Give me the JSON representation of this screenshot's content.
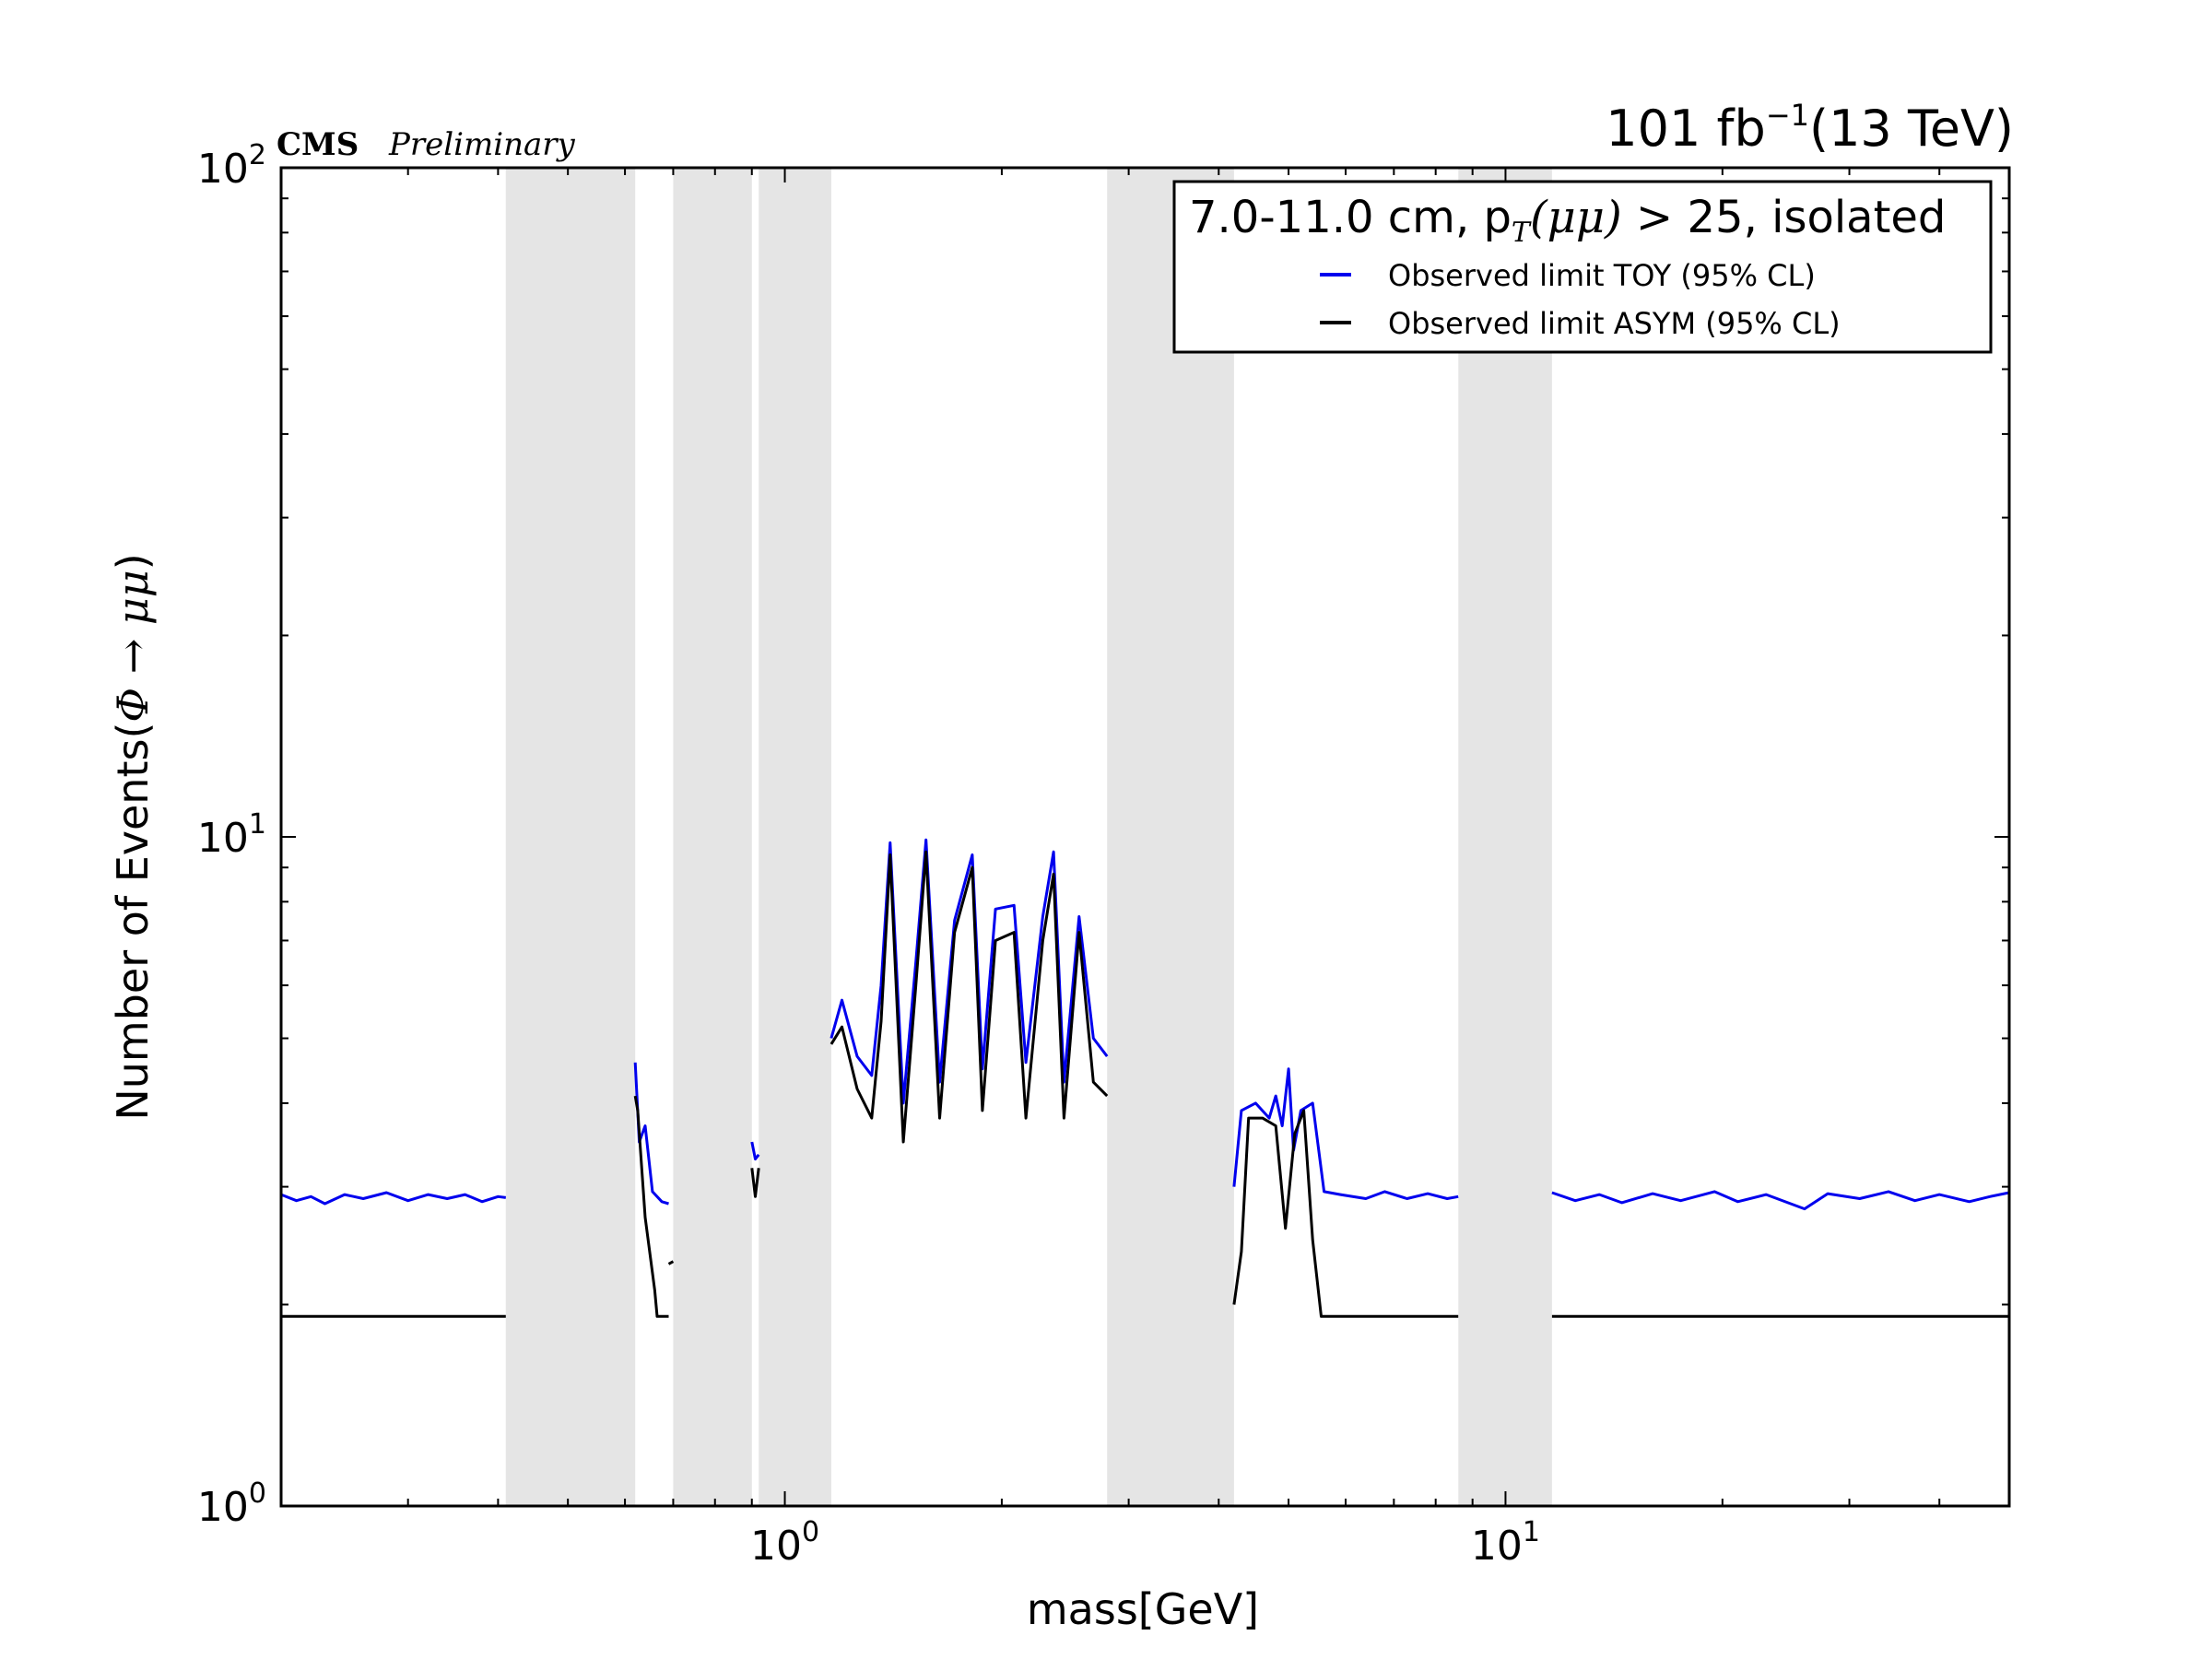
{
  "header": {
    "experiment": "CMS",
    "status": "Preliminary",
    "lumi_value": "101 fb",
    "lumi_exponent": "−1",
    "energy": "(13 TeV)"
  },
  "chart_data": {
    "type": "line",
    "title": "",
    "xlabel": "mass[GeV]",
    "ylabel_prefix": "Number of Events(",
    "ylabel_math": "Φ → μμ",
    "ylabel_suffix": ")",
    "xscale": "log",
    "yscale": "log",
    "xlim": [
      0.2,
      50
    ],
    "ylim": [
      1,
      100
    ],
    "x_ticks": [
      {
        "base": "10",
        "exp": "0",
        "value": 1
      },
      {
        "base": "10",
        "exp": "1",
        "value": 10
      }
    ],
    "y_ticks": [
      {
        "base": "10",
        "exp": "0",
        "value": 1
      },
      {
        "base": "10",
        "exp": "1",
        "value": 10
      },
      {
        "base": "10",
        "exp": "2",
        "value": 100
      }
    ],
    "legend": {
      "title": "7.0-11.0 cm, p",
      "title_sub": "T",
      "title_math": "(μμ)",
      "title_rest": " > 25, isolated",
      "placement": "top-right"
    },
    "excluded_mass_bands": [
      [
        0.41,
        0.62
      ],
      [
        0.7,
        0.9
      ],
      [
        0.92,
        1.16
      ],
      [
        2.8,
        4.2
      ],
      [
        8.6,
        11.6
      ]
    ],
    "series": [
      {
        "name": "Observed limit TOY (95% CL)",
        "color": "#0000ee",
        "segments": [
          [
            [
              0.2,
              2.92
            ],
            [
              0.21,
              2.86
            ],
            [
              0.22,
              2.9
            ],
            [
              0.23,
              2.83
            ],
            [
              0.245,
              2.92
            ],
            [
              0.26,
              2.88
            ],
            [
              0.28,
              2.94
            ],
            [
              0.3,
              2.86
            ],
            [
              0.32,
              2.92
            ],
            [
              0.34,
              2.88
            ],
            [
              0.36,
              2.92
            ],
            [
              0.38,
              2.85
            ],
            [
              0.4,
              2.9
            ],
            [
              0.41,
              2.89
            ]
          ],
          [
            [
              0.62,
              4.6
            ],
            [
              0.628,
              3.5
            ],
            [
              0.64,
              3.7
            ],
            [
              0.655,
              2.95
            ],
            [
              0.675,
              2.85
            ],
            [
              0.69,
              2.83
            ]
          ],
          [
            [
              0.9,
              3.5
            ],
            [
              0.91,
              3.3
            ],
            [
              0.92,
              3.35
            ]
          ],
          [
            [
              1.16,
              5.0
            ],
            [
              1.2,
              5.7
            ],
            [
              1.26,
              4.7
            ],
            [
              1.32,
              4.4
            ],
            [
              1.36,
              6.0
            ],
            [
              1.4,
              9.8
            ],
            [
              1.46,
              4.0
            ],
            [
              1.52,
              6.5
            ],
            [
              1.57,
              9.9
            ],
            [
              1.64,
              4.3
            ],
            [
              1.72,
              7.5
            ],
            [
              1.82,
              9.4
            ],
            [
              1.88,
              4.5
            ],
            [
              1.96,
              7.8
            ],
            [
              2.08,
              7.9
            ],
            [
              2.16,
              4.6
            ],
            [
              2.28,
              7.6
            ],
            [
              2.36,
              9.5
            ],
            [
              2.44,
              4.3
            ],
            [
              2.56,
              7.6
            ],
            [
              2.68,
              5.0
            ],
            [
              2.8,
              4.7
            ]
          ],
          [
            [
              4.2,
              3.0
            ],
            [
              4.3,
              3.9
            ],
            [
              4.5,
              4.0
            ],
            [
              4.7,
              3.8
            ],
            [
              4.8,
              4.1
            ],
            [
              4.9,
              3.7
            ],
            [
              5.0,
              4.5
            ],
            [
              5.08,
              3.4
            ],
            [
              5.2,
              3.9
            ],
            [
              5.4,
              4.0
            ],
            [
              5.6,
              2.95
            ],
            [
              5.9,
              2.92
            ],
            [
              6.4,
              2.88
            ],
            [
              6.8,
              2.95
            ],
            [
              7.3,
              2.88
            ],
            [
              7.8,
              2.93
            ],
            [
              8.3,
              2.88
            ],
            [
              8.6,
              2.9
            ]
          ],
          [
            [
              11.6,
              2.94
            ],
            [
              12.5,
              2.86
            ],
            [
              13.5,
              2.92
            ],
            [
              14.5,
              2.84
            ],
            [
              16.0,
              2.93
            ],
            [
              17.5,
              2.86
            ],
            [
              19.5,
              2.95
            ],
            [
              21.0,
              2.85
            ],
            [
              23.0,
              2.92
            ],
            [
              26.0,
              2.78
            ],
            [
              28.0,
              2.93
            ],
            [
              31.0,
              2.88
            ],
            [
              34.0,
              2.95
            ],
            [
              37.0,
              2.86
            ],
            [
              40.0,
              2.92
            ],
            [
              44.0,
              2.85
            ],
            [
              47.0,
              2.9
            ],
            [
              50.0,
              2.94
            ]
          ]
        ]
      },
      {
        "name": "Observed limit ASYM (95% CL)",
        "color": "#000000",
        "segments": [
          [
            [
              0.2,
              1.92
            ],
            [
              0.41,
              1.92
            ]
          ],
          [
            [
              0.62,
              4.1
            ],
            [
              0.625,
              3.9
            ],
            [
              0.64,
              2.7
            ],
            [
              0.66,
              2.1
            ],
            [
              0.665,
              1.92
            ],
            [
              0.69,
              1.92
            ]
          ],
          [
            [
              0.69,
              2.3
            ],
            [
              0.7,
              2.32
            ]
          ],
          [
            [
              0.9,
              3.2
            ],
            [
              0.91,
              2.9
            ],
            [
              0.92,
              3.2
            ]
          ],
          [
            [
              1.16,
              4.9
            ],
            [
              1.2,
              5.2
            ],
            [
              1.26,
              4.2
            ],
            [
              1.32,
              3.8
            ],
            [
              1.36,
              5.3
            ],
            [
              1.4,
              9.4
            ],
            [
              1.46,
              3.5
            ],
            [
              1.52,
              6.0
            ],
            [
              1.57,
              9.5
            ],
            [
              1.64,
              3.8
            ],
            [
              1.72,
              7.2
            ],
            [
              1.82,
              9.0
            ],
            [
              1.88,
              3.9
            ],
            [
              1.96,
              7.0
            ],
            [
              2.08,
              7.2
            ],
            [
              2.16,
              3.8
            ],
            [
              2.28,
              7.0
            ],
            [
              2.36,
              8.8
            ],
            [
              2.44,
              3.8
            ],
            [
              2.56,
              7.2
            ],
            [
              2.68,
              4.3
            ],
            [
              2.8,
              4.1
            ]
          ],
          [
            [
              4.2,
              2.0
            ],
            [
              4.3,
              2.4
            ],
            [
              4.4,
              3.8
            ],
            [
              4.6,
              3.8
            ],
            [
              4.8,
              3.7
            ],
            [
              4.95,
              2.6
            ],
            [
              5.1,
              3.6
            ],
            [
              5.25,
              3.9
            ],
            [
              5.4,
              2.5
            ],
            [
              5.55,
              1.92
            ],
            [
              8.6,
              1.92
            ]
          ],
          [
            [
              11.6,
              1.92
            ],
            [
              50.0,
              1.92
            ]
          ]
        ]
      }
    ]
  }
}
